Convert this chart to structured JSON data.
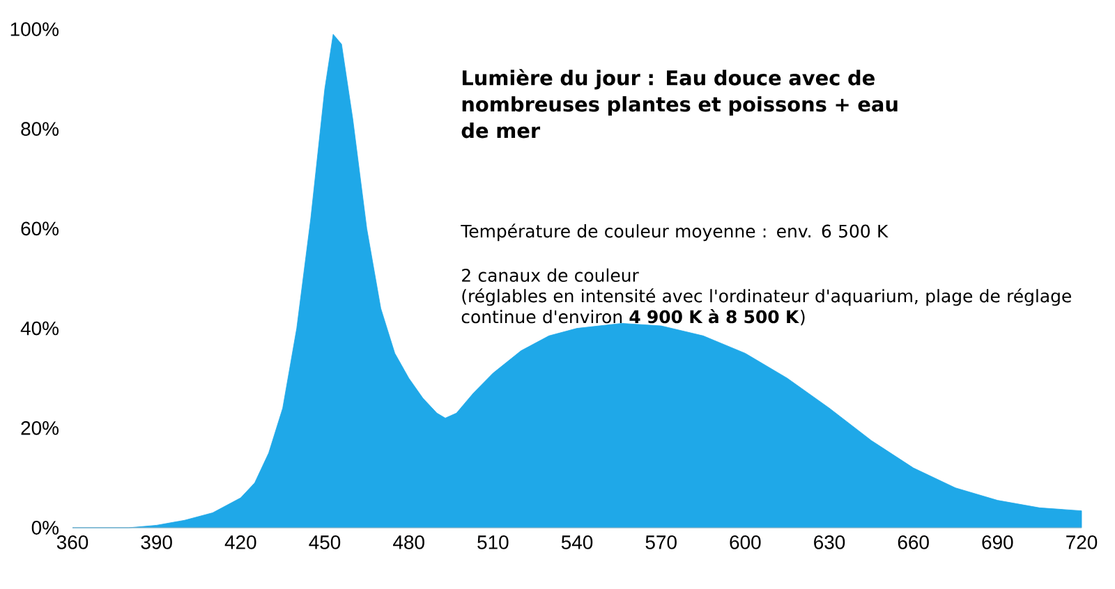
{
  "chart_data": {
    "type": "area",
    "title": "Lumière du jour : Eau douce avec de nombreuses plantes et poissons + eau de mer",
    "annotations": [
      "Température de couleur moyenne : env. 6 500 K",
      "2 canaux de couleur",
      "(réglables en intensité avec l'ordinateur d'aquarium, plage de réglage continue d'environ **4 900 K à 8 500 K**)"
    ],
    "x": [
      360,
      380,
      390,
      400,
      410,
      420,
      425,
      430,
      435,
      440,
      445,
      450,
      453,
      456,
      460,
      465,
      470,
      475,
      480,
      485,
      490,
      493,
      497,
      503,
      510,
      520,
      530,
      540,
      556,
      570,
      585,
      600,
      615,
      630,
      645,
      660,
      675,
      690,
      705,
      720
    ],
    "values": [
      0,
      0,
      0.5,
      1.5,
      3,
      6,
      9,
      15,
      24,
      40,
      62,
      88,
      99,
      97,
      82,
      60,
      44,
      35,
      30,
      26,
      23,
      22,
      23,
      27,
      31,
      35.5,
      38.5,
      40,
      41,
      40.5,
      38.5,
      35,
      30,
      24,
      17.5,
      12,
      8,
      5.5,
      4,
      3.4
    ],
    "color": "#1fa8e8",
    "xlim": [
      360,
      720
    ],
    "xticks": [
      360,
      390,
      420,
      450,
      480,
      510,
      540,
      570,
      600,
      630,
      660,
      690,
      720
    ],
    "ylim": [
      0,
      100
    ],
    "yticks": [
      {
        "value": 0,
        "label": "0%"
      },
      {
        "value": 20,
        "label": "20%"
      },
      {
        "value": 40,
        "label": "40%"
      },
      {
        "value": 60,
        "label": "60%"
      },
      {
        "value": 80,
        "label": "80%"
      },
      {
        "value": 100,
        "label": "100%"
      }
    ]
  }
}
